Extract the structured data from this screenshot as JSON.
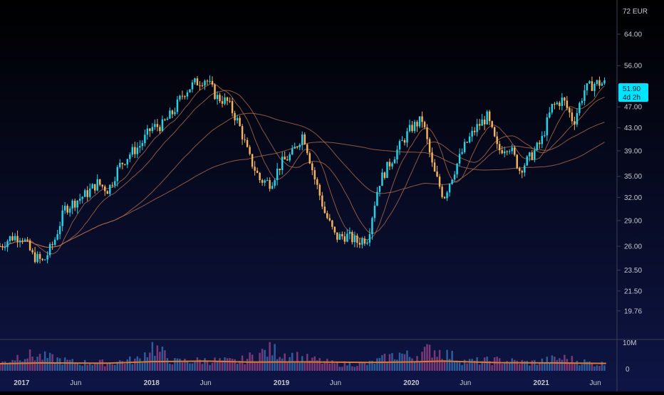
{
  "chart_data": {
    "type": "candlestick",
    "title": "",
    "currency_label": "72 EUR",
    "y_scale": "log",
    "ylim": [
      17.5,
      74
    ],
    "y_ticks": [
      "64.00",
      "56.00",
      "47.00",
      "43.00",
      "39.00",
      "35.00",
      "32.00",
      "29.00",
      "26.00",
      "23.50",
      "21.50",
      "19.76"
    ],
    "x_ticks": [
      {
        "label": "2017",
        "date": "2017-01"
      },
      {
        "label": "Jun",
        "date": "2017-06"
      },
      {
        "label": "2018",
        "date": "2018-01"
      },
      {
        "label": "Jun",
        "date": "2018-06"
      },
      {
        "label": "2019",
        "date": "2019-01"
      },
      {
        "label": "Jun",
        "date": "2019-06"
      },
      {
        "label": "2020",
        "date": "2020-01"
      },
      {
        "label": "Jun",
        "date": "2020-06"
      },
      {
        "label": "2021",
        "date": "2021-01"
      },
      {
        "label": "Jun",
        "date": "2021-06"
      }
    ],
    "xlim": [
      "2016-11",
      "2021-08"
    ],
    "last_price": "51.90",
    "countdown": "4d 2h",
    "volume_ticks": [
      "10M",
      "0"
    ],
    "volume_max": 12,
    "price_path": [
      [
        "2016-11",
        26.0
      ],
      [
        "2016-12",
        27.0
      ],
      [
        "2017-01",
        27.2
      ],
      [
        "2017-02",
        25.0
      ],
      [
        "2017-03",
        24.3
      ],
      [
        "2017-04",
        26.5
      ],
      [
        "2017-05",
        30.5
      ],
      [
        "2017-06",
        31.5
      ],
      [
        "2017-07",
        32.5
      ],
      [
        "2017-08",
        34.0
      ],
      [
        "2017-09",
        33.0
      ],
      [
        "2017-10",
        36.5
      ],
      [
        "2017-11",
        38.5
      ],
      [
        "2017-12",
        40.0
      ],
      [
        "2018-01",
        43.0
      ],
      [
        "2018-02",
        43.5
      ],
      [
        "2018-03",
        46.0
      ],
      [
        "2018-04",
        50.0
      ],
      [
        "2018-05",
        52.0
      ],
      [
        "2018-06",
        53.0
      ],
      [
        "2018-07",
        49.0
      ],
      [
        "2018-08",
        48.0
      ],
      [
        "2018-09",
        44.0
      ],
      [
        "2018-10",
        38.0
      ],
      [
        "2018-11",
        34.5
      ],
      [
        "2018-12",
        34.0
      ],
      [
        "2019-01",
        37.0
      ],
      [
        "2019-02",
        38.5
      ],
      [
        "2019-03",
        42.0
      ],
      [
        "2019-04",
        35.0
      ],
      [
        "2019-05",
        30.0
      ],
      [
        "2019-06",
        27.0
      ],
      [
        "2019-07",
        27.2
      ],
      [
        "2019-08",
        26.5
      ],
      [
        "2019-09",
        27.0
      ],
      [
        "2019-10",
        34.0
      ],
      [
        "2019-11",
        37.0
      ],
      [
        "2019-12",
        40.0
      ],
      [
        "2020-01",
        43.0
      ],
      [
        "2020-02",
        44.5
      ],
      [
        "2020-03",
        36.0
      ],
      [
        "2020-04",
        32.0
      ],
      [
        "2020-05",
        36.0
      ],
      [
        "2020-06",
        40.0
      ],
      [
        "2020-07",
        43.0
      ],
      [
        "2020-08",
        45.0
      ],
      [
        "2020-09",
        39.0
      ],
      [
        "2020-10",
        40.0
      ],
      [
        "2020-11",
        36.0
      ],
      [
        "2020-12",
        38.0
      ],
      [
        "2021-01",
        40.5
      ],
      [
        "2021-02",
        47.0
      ],
      [
        "2021-03",
        48.5
      ],
      [
        "2021-04",
        44.0
      ],
      [
        "2021-05",
        50.5
      ],
      [
        "2021-06",
        52.0
      ],
      [
        "2021-07",
        51.9
      ]
    ],
    "volume_path": [
      [
        "2016-11",
        3.0
      ],
      [
        "2017-01",
        7.0
      ],
      [
        "2017-03",
        6.0
      ],
      [
        "2017-06",
        3.5
      ],
      [
        "2017-09",
        3.5
      ],
      [
        "2017-12",
        5.0
      ],
      [
        "2018-01",
        11.0
      ],
      [
        "2018-03",
        4.0
      ],
      [
        "2018-06",
        4.5
      ],
      [
        "2018-09",
        4.0
      ],
      [
        "2018-12",
        9.0
      ],
      [
        "2019-03",
        5.5
      ],
      [
        "2019-06",
        3.0
      ],
      [
        "2019-09",
        3.0
      ],
      [
        "2019-12",
        7.5
      ],
      [
        "2020-01",
        6.0
      ],
      [
        "2020-03",
        9.5
      ],
      [
        "2020-06",
        4.0
      ],
      [
        "2020-09",
        4.5
      ],
      [
        "2020-12",
        3.5
      ],
      [
        "2021-03",
        5.5
      ],
      [
        "2021-06",
        3.0
      ],
      [
        "2021-07",
        3.0
      ]
    ],
    "volume_ma_path": [
      [
        "2016-11",
        2.8
      ],
      [
        "2017-03",
        3.1
      ],
      [
        "2017-09",
        3.0
      ],
      [
        "2018-01",
        3.6
      ],
      [
        "2018-06",
        3.8
      ],
      [
        "2018-10",
        3.4
      ],
      [
        "2019-03",
        3.5
      ],
      [
        "2019-09",
        3.3
      ],
      [
        "2020-01",
        3.5
      ],
      [
        "2020-04",
        3.8
      ],
      [
        "2020-09",
        3.2
      ],
      [
        "2021-02",
        3.1
      ],
      [
        "2021-07",
        2.9
      ]
    ],
    "moving_average_periods": [
      10,
      20,
      50,
      100
    ],
    "colors": {
      "up": "#26d4e8",
      "down": "#f5b35a",
      "volume_up": "#2f5d9c",
      "volume_down": "#7a3a7a",
      "volume_ma": "#e07a2a",
      "ma": "#b06a4a",
      "axis_text": "#c7c9d1",
      "last_price_bg": "#00e5ff",
      "background_top": "#000000",
      "background_bottom": "#0e1545"
    }
  }
}
